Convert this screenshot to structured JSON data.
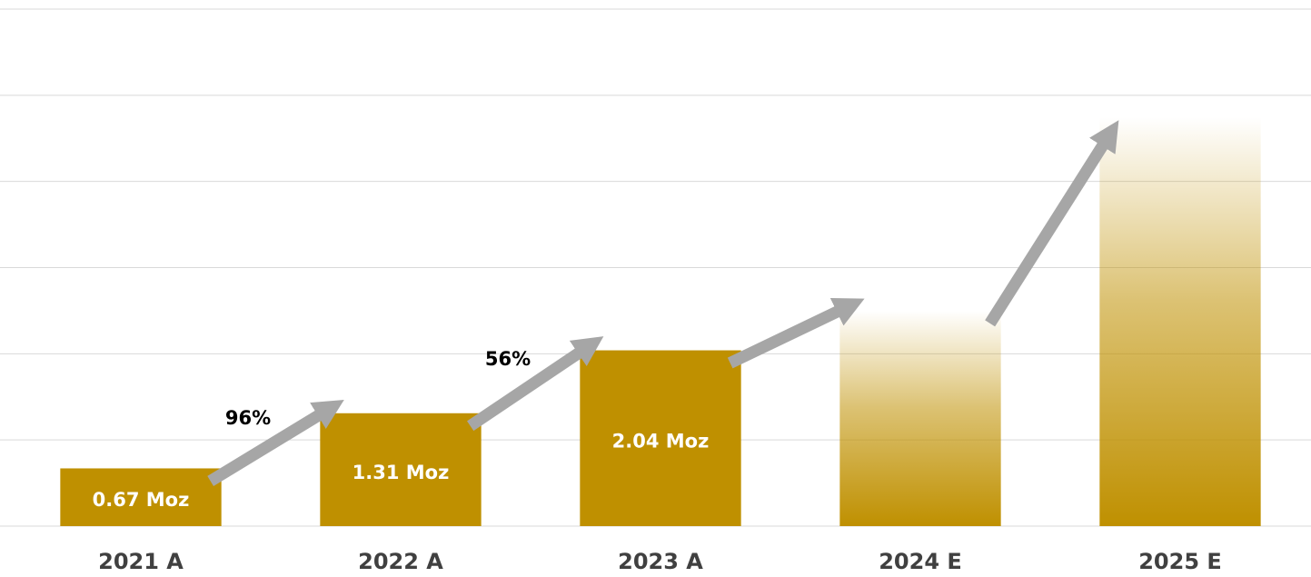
{
  "chart_data": {
    "type": "bar",
    "categories": [
      "2021 A",
      "2022 A",
      "2023 A",
      "2024 E",
      "2025 E"
    ],
    "values": [
      0.67,
      1.31,
      2.04,
      2.5,
      4.75
    ],
    "value_labels": [
      "0.67 Moz",
      "1.31 Moz",
      "2.04 Moz",
      null,
      null
    ],
    "gradient_fill": [
      false,
      false,
      false,
      true,
      true
    ],
    "color": "#bf9000",
    "ylim": [
      0,
      6
    ],
    "yticks": [
      0,
      1,
      2,
      3,
      4,
      5,
      6
    ],
    "grid": true,
    "annotations": [
      {
        "text": "96%"
      },
      {
        "text": "56%"
      }
    ]
  }
}
